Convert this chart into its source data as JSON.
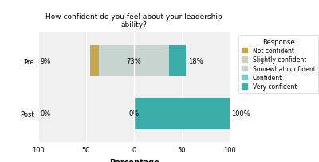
{
  "title": "How confident do you feel about your leadership\nability?",
  "xlabel": "Percentage",
  "ylabel_categories": [
    "Post",
    "Pre"
  ],
  "responses": [
    "Not confident",
    "Slightly confident",
    "Somewhat confident",
    "Confident",
    "Very confident"
  ],
  "colors": [
    "#C8A84B",
    "#D0D0BF",
    "#C8D4D0",
    "#7ECECA",
    "#3BADA8"
  ],
  "pre_values": [
    9,
    0,
    73,
    0,
    18
  ],
  "post_values": [
    0,
    0,
    0,
    0,
    100
  ],
  "xlim": [
    -100,
    100
  ],
  "xticks": [
    -100,
    -50,
    0,
    50,
    100
  ],
  "bar_height": 0.6,
  "facet_bg": "#DCDCDC",
  "plot_bg": "#F0F0F0",
  "legend_title": "Response",
  "title_fontsize": 6.5,
  "axis_fontsize": 7,
  "tick_fontsize": 6,
  "legend_fontsize": 5.5
}
